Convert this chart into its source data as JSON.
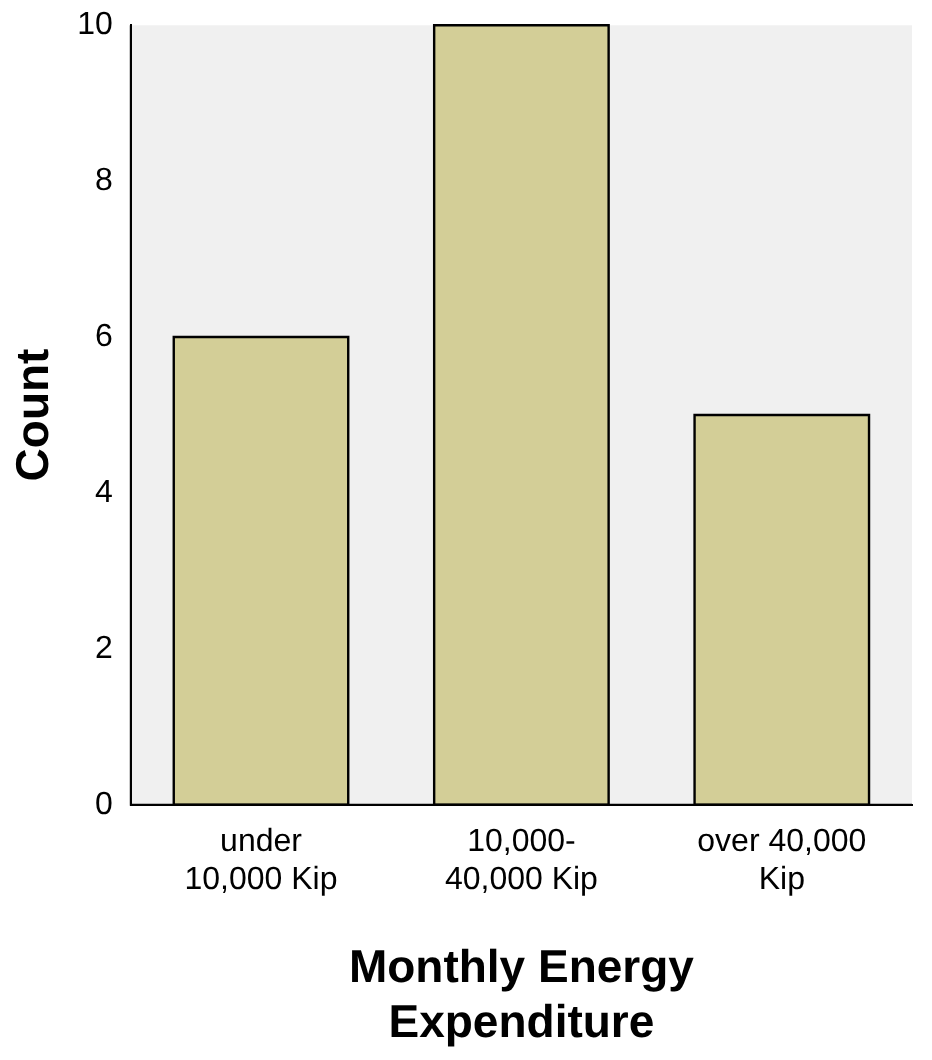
{
  "chart_data": {
    "type": "bar",
    "xlabel": "Monthly Energy Expenditure",
    "ylabel": "Count",
    "categories": [
      "under\n10,000 Kip",
      "10,000-\n40,000 Kip",
      "over 40,000\nKip"
    ],
    "values": [
      6,
      10,
      5
    ],
    "color": "#d3ce97",
    "ylim": [
      0,
      10
    ],
    "yticks": [
      0,
      2,
      4,
      6,
      8,
      10
    ],
    "grid": false,
    "legend": false
  }
}
